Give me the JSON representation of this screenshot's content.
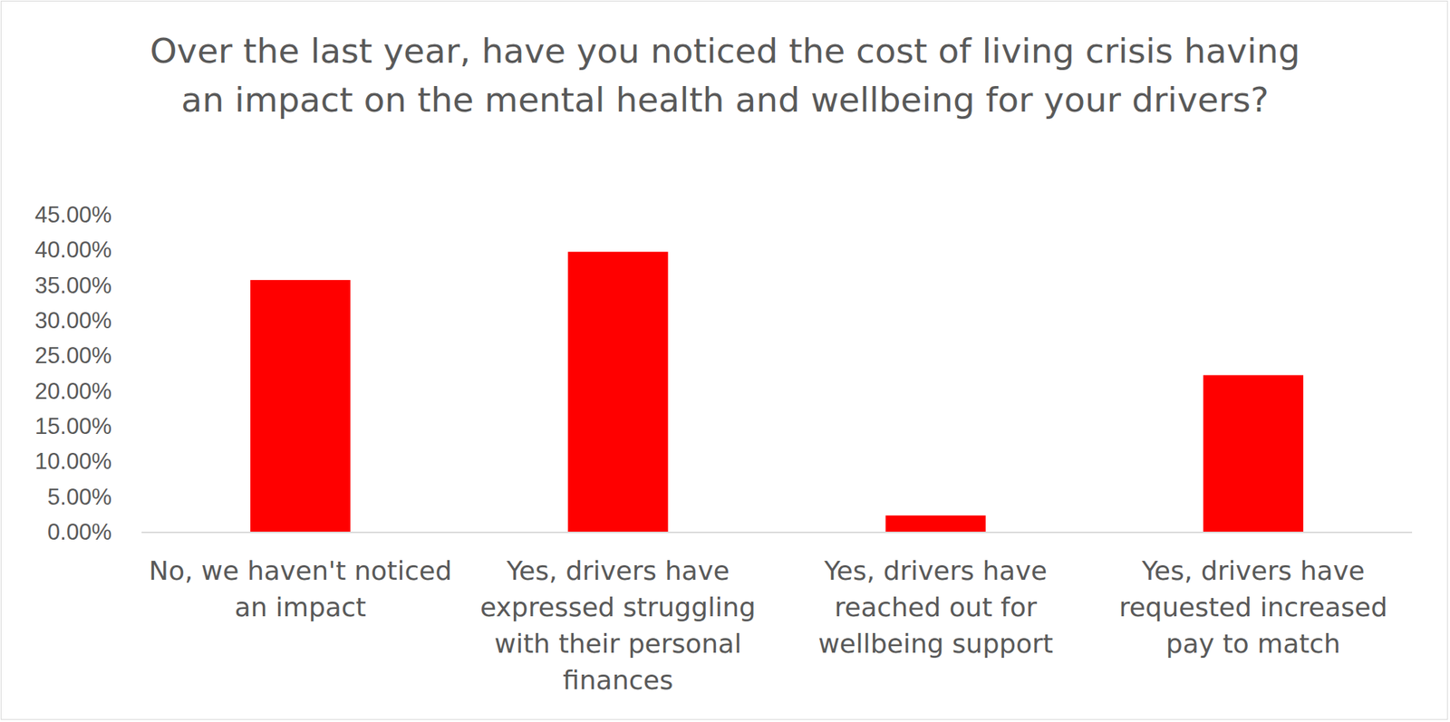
{
  "chart_data": {
    "type": "bar",
    "title": "Over the last year, have you noticed the cost of living crisis having an impact on the mental health and wellbeing for your drivers?",
    "categories": [
      "No, we haven't noticed an impact",
      "Yes, drivers have expressed struggling with their personal finances",
      "Yes, drivers have reached out for wellbeing support",
      "Yes, drivers have requested increased pay to match"
    ],
    "values": [
      35.8,
      39.8,
      2.4,
      22.3
    ],
    "color": "#ff0000",
    "ylim": [
      0,
      45
    ],
    "yticks": [
      {
        "value": 0,
        "label": "0.00%"
      },
      {
        "value": 5,
        "label": "5.00%"
      },
      {
        "value": 10,
        "label": "10.00%"
      },
      {
        "value": 15,
        "label": "15.00%"
      },
      {
        "value": 20,
        "label": "20.00%"
      },
      {
        "value": 25,
        "label": "25.00%"
      },
      {
        "value": 30,
        "label": "30.00%"
      },
      {
        "value": 35,
        "label": "35.00%"
      },
      {
        "value": 40,
        "label": "40.00%"
      },
      {
        "value": 45,
        "label": "45.00%"
      }
    ],
    "grid": false
  }
}
